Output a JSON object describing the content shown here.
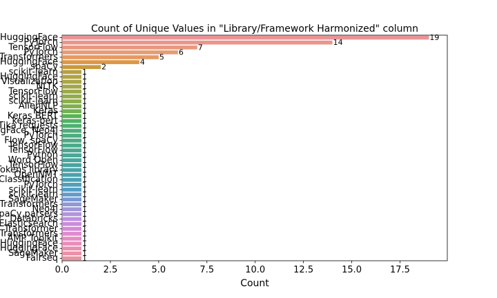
{
  "chart_data": {
    "type": "bar",
    "orientation": "horizontal",
    "title": "Count of Unique Values in \"Library/Framework Harmonized\" column",
    "xlabel": "Count",
    "ylabel": "",
    "xlim": [
      0,
      19.95
    ],
    "xticks": [
      "0.0",
      "2.5",
      "5.0",
      "7.5",
      "10.0",
      "12.5",
      "15.0",
      "17.5"
    ],
    "grid": false,
    "legend": "none",
    "categories": [
      "HuggingFace",
      "PyTorch",
      "TensorFlow",
      "PyTorch",
      "Transformers",
      "HuggingFace",
      "spaCy",
      "scikit-learn",
      "HuggingFace",
      "Visualization",
      "NLTK",
      "TensorFlow",
      "scikit-learn",
      "scikit-learn",
      "AllenNLP",
      "Keras",
      "Keras BERT",
      "keras-bert",
      "Tika requests",
      "HuggingFace, Neo4j",
      "PyTorch",
      "Flow, spaCy",
      "TensorFlow",
      "TensorFlow",
      "Python",
      "Word Open",
      "TensorFlow",
      "Tokens library",
      "OpenNMT",
      "Classification",
      "PyTorch",
      "scikit-learn",
      "scikit-learn",
      "SageMaker",
      "Transformers",
      "Neo4j",
      "spaCy parsers",
      "Databricks",
      "Elasticsearch",
      "Transformer",
      "Transformers",
      "AMP Toolkit",
      "HuggingFace",
      "HuggingFace",
      "SageMaker",
      "Fairseq"
    ],
    "values": [
      19,
      14,
      7,
      6,
      5,
      4,
      2,
      1,
      1,
      1,
      1,
      1,
      1,
      1,
      1,
      1,
      1,
      1,
      1,
      1,
      1,
      1,
      1,
      1,
      1,
      1,
      1,
      1,
      1,
      1,
      1,
      1,
      1,
      1,
      1,
      1,
      1,
      1,
      1,
      1,
      1,
      1,
      1,
      1,
      1,
      1
    ],
    "colors": [
      "#ea9396",
      "#e9958c",
      "#e99880",
      "#e69c74",
      "#e59a63",
      "#de9646",
      "#c89a3e",
      "#b8a042",
      "#b1a344",
      "#a9a646",
      "#a3a748",
      "#9ca94a",
      "#94ab4b",
      "#8bad4c",
      "#80b04d",
      "#72b24f",
      "#5ab452",
      "#52b265",
      "#4fb070",
      "#4fae78",
      "#4eac80",
      "#4dab86",
      "#4ca98c",
      "#4ba891",
      "#4aa797",
      "#49a69c",
      "#49a4a1",
      "#49a3a7",
      "#4aa2ad",
      "#4ca1b4",
      "#4fa0bb",
      "#559ec4",
      "#619ccc",
      "#789ad3",
      "#8e98d7",
      "#a196da",
      "#b193dd",
      "#bf90e0",
      "#cb8cde",
      "#d78ad8",
      "#e18ad0",
      "#e78bc6",
      "#ea8dba",
      "#ec8eb0",
      "#ec90a6",
      "#ea929d"
    ]
  }
}
